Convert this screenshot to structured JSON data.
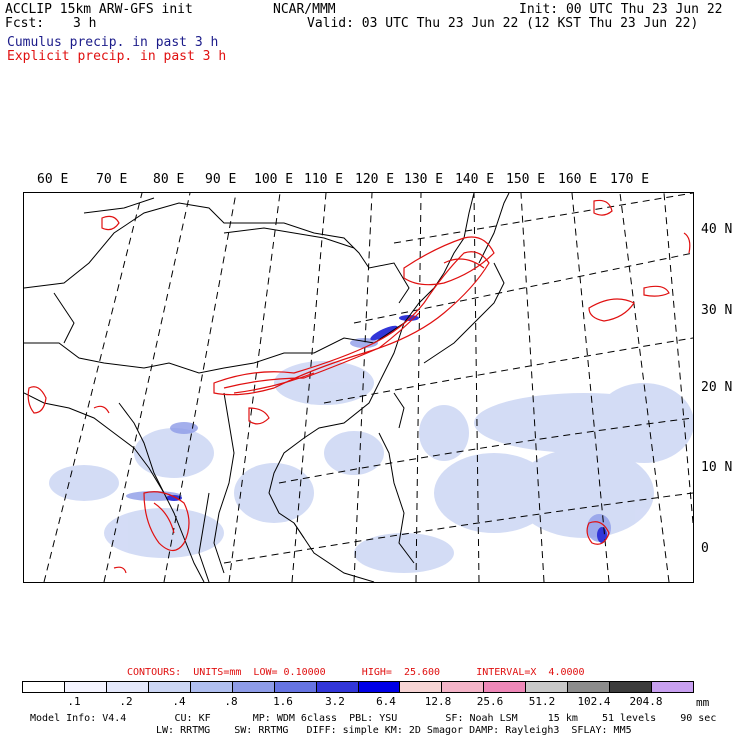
{
  "header": {
    "title_left": "ACCLIP 15km ARW-GFS init",
    "fcst_label": "Fcst:",
    "fcst_value": "3 h",
    "center": "NCAR/MMM",
    "init": "Init: 00 UTC Thu 23 Jun 22",
    "valid": "Valid: 03 UTC Thu 23 Jun 22 (12 KST Thu 23 Jun 22)",
    "cumulus_label": "Cumulus precip. in past 3 h",
    "explicit_label": "Explicit precip. in past 3 h"
  },
  "map": {
    "lon_labels": [
      "60 E",
      "70 E",
      "80 E",
      "90 E",
      "100 E",
      "110 E",
      "120 E",
      "130 E",
      "140 E",
      "150 E",
      "160 E",
      "170 E"
    ],
    "lat_labels": [
      "40 N",
      "30 N",
      "20 N",
      "10 N",
      "0"
    ]
  },
  "legend": {
    "contours_text": "CONTOURS:  UNITS=mm  LOW= 0.10000      HIGH=  25.600      INTERVAL=X  4.0000",
    "colors": [
      "#ffffff",
      "#f4f4ff",
      "#e4e8fb",
      "#ccd6f4",
      "#b0bff0",
      "#8e9ce8",
      "#6674e2",
      "#3236d8",
      "#0000e6",
      "#f6d4d4",
      "#f4b4c8",
      "#ee88b8",
      "#c8c8c8",
      "#8c8c8c",
      "#3c3c3c",
      "#c8a0f0"
    ],
    "ticks": [
      ".1",
      ".2",
      ".4",
      ".8",
      "1.6",
      "3.2",
      "6.4",
      "12.8",
      "25.6",
      "51.2",
      "102.4",
      "204.8"
    ],
    "unit": "mm"
  },
  "footer": {
    "line1": "Model Info: V4.4        CU: KF       MP: WDM 6class  PBL: YSU        SF: Noah LSM     15 km    51 levels    90 sec",
    "line2": "LW: RRTMG    SW: RRTMG   DIFF: simple KM: 2D Smagor DAMP: Rayleigh3  SFLAY: MM5"
  }
}
